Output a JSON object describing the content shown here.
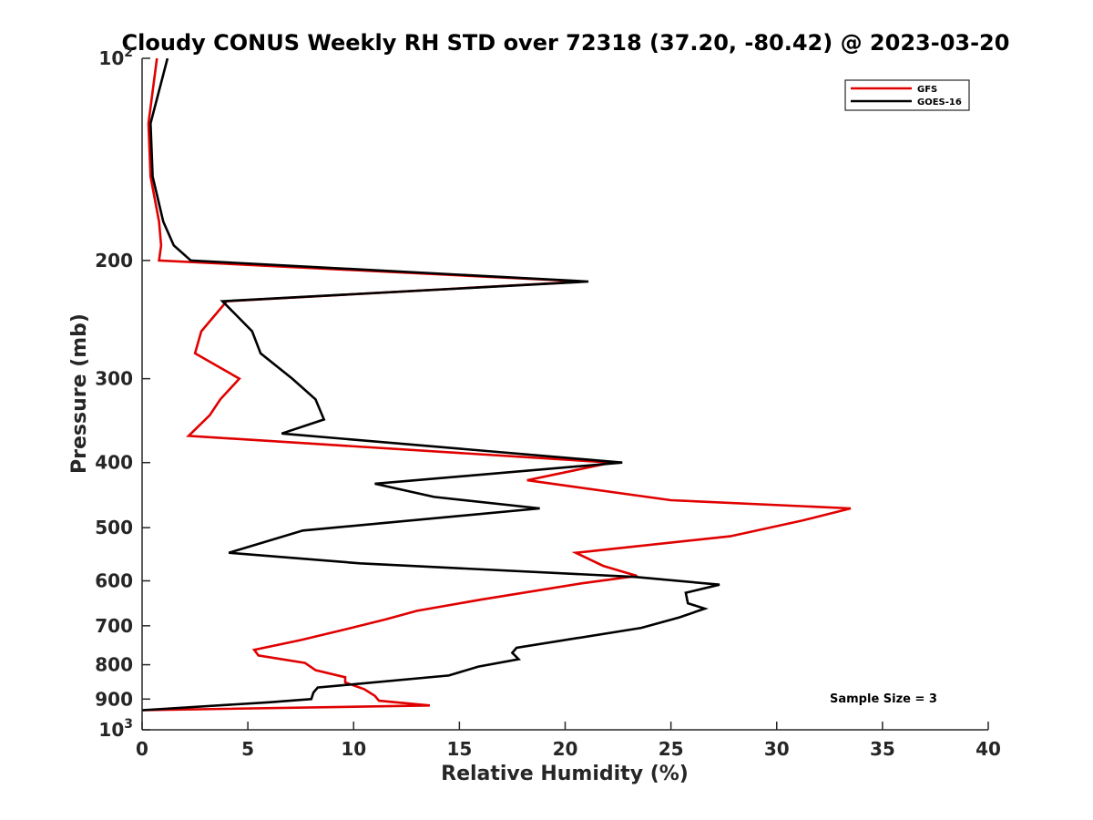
{
  "chart_data": {
    "type": "line",
    "title": "Cloudy CONUS Weekly RH STD over 72318 (37.20, -80.42) @ 2023-03-20",
    "xlabel": "Relative Humidity (%)",
    "ylabel": "Pressure (mb)",
    "xlim": [
      0,
      40
    ],
    "ylim": [
      100,
      1000
    ],
    "yscale": "log",
    "y_reversed": true,
    "xticks": [
      "0",
      "5",
      "10",
      "15",
      "20",
      "25",
      "30",
      "35",
      "40"
    ],
    "yticks": [
      {
        "value": 100,
        "base": "10",
        "exp": "2"
      },
      {
        "value": 200,
        "label": "200"
      },
      {
        "value": 300,
        "label": "300"
      },
      {
        "value": 400,
        "label": "400"
      },
      {
        "value": 500,
        "label": "500"
      },
      {
        "value": 600,
        "label": "600"
      },
      {
        "value": 700,
        "label": "700"
      },
      {
        "value": 800,
        "label": "800"
      },
      {
        "value": 900,
        "label": "900"
      },
      {
        "value": 1000,
        "base": "10",
        "exp": "3"
      }
    ],
    "legend_position": "top-right",
    "annotation": "Sample Size = 3",
    "series": [
      {
        "name": "GFS",
        "color": "#e00000",
        "points": [
          [
            0.7,
            100
          ],
          [
            0.3,
            125
          ],
          [
            0.4,
            150
          ],
          [
            0.8,
            175
          ],
          [
            0.9,
            190
          ],
          [
            0.8,
            200
          ],
          [
            20.9,
            215
          ],
          [
            4.0,
            230
          ],
          [
            2.8,
            255
          ],
          [
            2.5,
            275
          ],
          [
            4.6,
            300
          ],
          [
            3.7,
            322
          ],
          [
            3.2,
            340
          ],
          [
            2.2,
            365
          ],
          [
            22.2,
            400
          ],
          [
            18.2,
            425
          ],
          [
            25.0,
            455
          ],
          [
            33.5,
            468
          ],
          [
            31.2,
            488
          ],
          [
            27.8,
            515
          ],
          [
            20.5,
            545
          ],
          [
            21.8,
            570
          ],
          [
            23.4,
            590
          ],
          [
            20.8,
            605
          ],
          [
            16.0,
            640
          ],
          [
            13.0,
            665
          ],
          [
            11.5,
            685
          ],
          [
            9.5,
            710
          ],
          [
            7.5,
            735
          ],
          [
            5.3,
            760
          ],
          [
            5.5,
            775
          ],
          [
            7.7,
            795
          ],
          [
            8.2,
            815
          ],
          [
            9.6,
            835
          ],
          [
            9.6,
            850
          ],
          [
            10.5,
            870
          ],
          [
            11.0,
            890
          ],
          [
            11.2,
            905
          ],
          [
            13.6,
            920
          ],
          [
            0.0,
            935
          ]
        ]
      },
      {
        "name": "GOES-16",
        "color": "#000000",
        "points": [
          [
            1.2,
            100
          ],
          [
            0.4,
            125
          ],
          [
            0.5,
            150
          ],
          [
            1.0,
            175
          ],
          [
            1.5,
            190
          ],
          [
            2.3,
            200
          ],
          [
            21.1,
            215
          ],
          [
            3.8,
            230
          ],
          [
            5.2,
            255
          ],
          [
            5.6,
            275
          ],
          [
            7.1,
            300
          ],
          [
            8.2,
            322
          ],
          [
            8.6,
            345
          ],
          [
            6.6,
            362
          ],
          [
            22.7,
            400
          ],
          [
            11.0,
            430
          ],
          [
            13.8,
            450
          ],
          [
            18.8,
            468
          ],
          [
            7.6,
            505
          ],
          [
            4.1,
            545
          ],
          [
            10.3,
            565
          ],
          [
            23.3,
            592
          ],
          [
            27.3,
            608
          ],
          [
            25.7,
            625
          ],
          [
            25.8,
            648
          ],
          [
            26.6,
            660
          ],
          [
            25.4,
            680
          ],
          [
            23.6,
            705
          ],
          [
            17.7,
            755
          ],
          [
            17.5,
            768
          ],
          [
            17.8,
            785
          ],
          [
            15.9,
            805
          ],
          [
            14.5,
            830
          ],
          [
            8.3,
            865
          ],
          [
            8.1,
            880
          ],
          [
            8.0,
            900
          ],
          [
            6.0,
            910
          ],
          [
            0.0,
            935
          ]
        ]
      }
    ]
  }
}
